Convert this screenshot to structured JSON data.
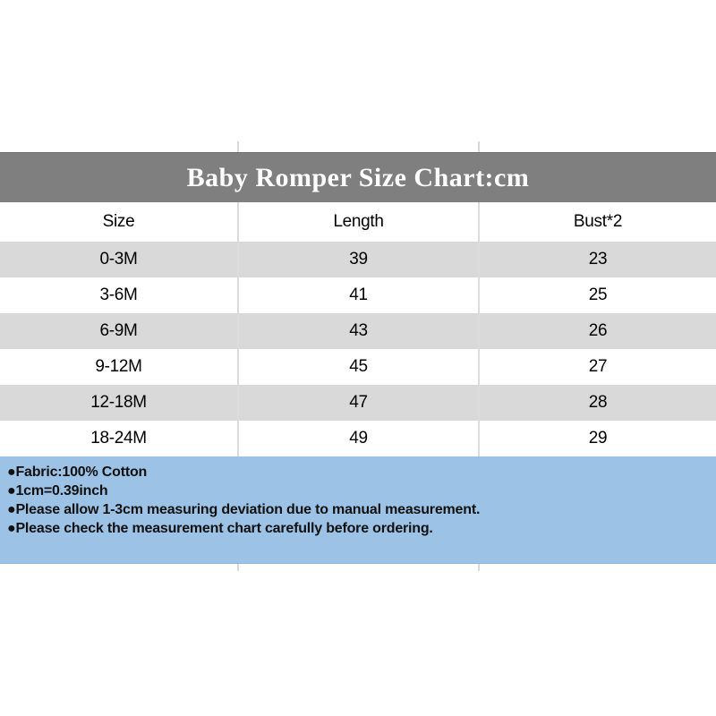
{
  "chart_data": {
    "type": "table",
    "title": "Baby Romper Size Chart:cm",
    "columns": [
      "Size",
      "Length",
      "Bust*2"
    ],
    "rows": [
      [
        "0-3M",
        "39",
        "23"
      ],
      [
        "3-6M",
        "41",
        "25"
      ],
      [
        "6-9M",
        "43",
        "26"
      ],
      [
        "9-12M",
        "45",
        "27"
      ],
      [
        "12-18M",
        "47",
        "28"
      ],
      [
        "18-24M",
        "49",
        "29"
      ]
    ],
    "units": "cm",
    "layout_hints": {
      "row_striping": "odd rows gray, even rows white",
      "column_dividers_visible_on_white_rows": true
    }
  },
  "notes": [
    "●Fabric:100% Cotton",
    "●1cm=0.39inch",
    "●Please allow 1-3cm measuring deviation due to manual measurement.",
    "●Please check the measurement chart carefully before ordering."
  ],
  "colors": {
    "title_bar_bg": "#7f7f7f",
    "title_text": "#ffffff",
    "row_alt_gray": "#d9d9d9",
    "notes_bg": "#9cc2e6",
    "body_text": "#000000"
  }
}
